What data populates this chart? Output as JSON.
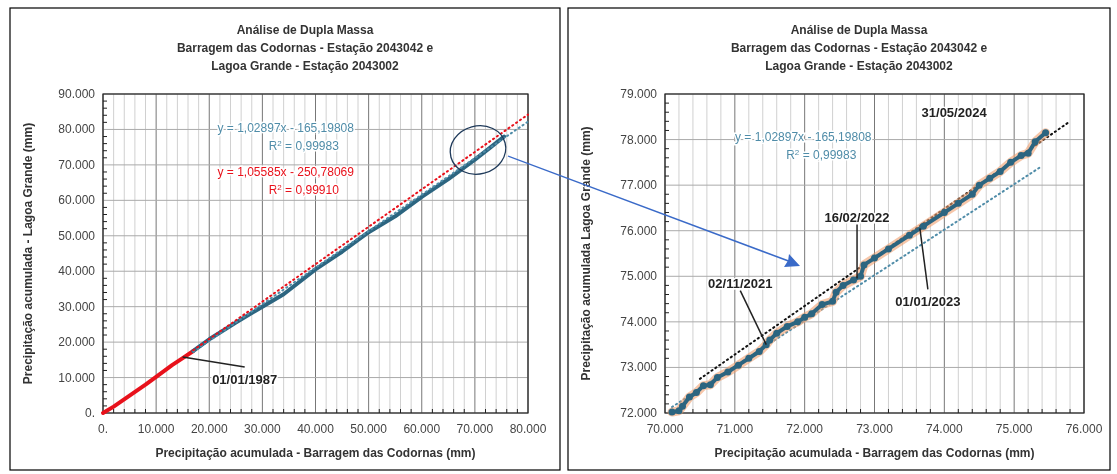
{
  "chart_data": [
    {
      "type": "line",
      "title": "Análise de Dupla Massa\nBarragem das Codornas -  Estação 2043042  e\nLagoa Grande - Estação 2043002",
      "xlabel": "Precipitação acumulada - Barragem das Codornas (mm)",
      "ylabel": "Precipitação acumulada - Lagoa Grande (mm)",
      "xlim": [
        0,
        80000
      ],
      "ylim": [
        0,
        90000
      ],
      "xticks": [
        {
          "value": 0,
          "label": "0."
        },
        {
          "value": 10000,
          "label": "10.000"
        },
        {
          "value": 20000,
          "label": "20.000"
        },
        {
          "value": 30000,
          "label": "30.000"
        },
        {
          "value": 40000,
          "label": "40.000"
        },
        {
          "value": 50000,
          "label": "50.000"
        },
        {
          "value": 60000,
          "label": "60.000"
        },
        {
          "value": 70000,
          "label": "70.000"
        },
        {
          "value": 80000,
          "label": "80.000"
        }
      ],
      "yticks": [
        {
          "value": 0,
          "label": "0."
        },
        {
          "value": 10000,
          "label": "10.000"
        },
        {
          "value": 20000,
          "label": "20.000"
        },
        {
          "value": 30000,
          "label": "30.000"
        },
        {
          "value": 40000,
          "label": "40.000"
        },
        {
          "value": 50000,
          "label": "50.000"
        },
        {
          "value": 60000,
          "label": "60.000"
        },
        {
          "value": 70000,
          "label": "70.000"
        },
        {
          "value": 80000,
          "label": "80.000"
        },
        {
          "value": 90000,
          "label": "90.000"
        }
      ],
      "grid": true,
      "marker": "none",
      "line_style": "solid",
      "series": [
        {
          "color": "#e8111b",
          "x": [
            0,
            2000,
            5000,
            8000,
            10000,
            13000,
            15000,
            17000
          ],
          "values": [
            0,
            1800,
            4900,
            8000,
            10200,
            13500,
            15500,
            17500
          ]
        },
        {
          "color": "#2c6580",
          "x": [
            17000,
            20000,
            25000,
            30000,
            34000,
            40000,
            45000,
            50000,
            55000,
            60000,
            65000,
            70000,
            73000,
            75500
          ],
          "values": [
            17500,
            20800,
            25500,
            30000,
            33500,
            40500,
            45500,
            51000,
            55500,
            61000,
            66000,
            71500,
            75000,
            78000
          ]
        },
        {
          "color": "#4f8ca8",
          "line_style": "dotted",
          "x": [
            17000,
            80000
          ],
          "values": [
            17300,
            82200
          ]
        },
        {
          "color": "#e8111b",
          "line_style": "dotted",
          "x": [
            17000,
            80000
          ],
          "values": [
            17700,
            84200
          ]
        }
      ],
      "annotations": [
        "y = 1,02897x - 165,19808\nR$^{2}$ = 0,99983",
        "y = 1,05585x - 250,78069\nR$^{2}$ = 0,99910",
        {
          "text": "01/01/1987",
          "x": 15000,
          "y": 15800
        }
      ]
    },
    {
      "type": "line",
      "title": "Análise de Dupla Massa\nBarragem das Codornas -  Estação 2043042  e\nLagoa Grande - Estação 2043002",
      "xlabel": "Precipitação acumulada - Barragem das Codornas (mm)",
      "ylabel": "Precipitação acumulada Lagoa Grande (mm)",
      "xlim": [
        70000,
        76000
      ],
      "ylim": [
        72000,
        79000
      ],
      "xticks": [
        {
          "value": 70000,
          "label": "70.000"
        },
        {
          "value": 71000,
          "label": "71.000"
        },
        {
          "value": 72000,
          "label": "72.000"
        },
        {
          "value": 73000,
          "label": "73.000"
        },
        {
          "value": 74000,
          "label": "74.000"
        },
        {
          "value": 75000,
          "label": "75.000"
        },
        {
          "value": 76000,
          "label": "76.000"
        }
      ],
      "yticks": [
        {
          "value": 72000,
          "label": "72.000"
        },
        {
          "value": 73000,
          "label": "73.000"
        },
        {
          "value": 74000,
          "label": "74.000"
        },
        {
          "value": 75000,
          "label": "75.000"
        },
        {
          "value": 76000,
          "label": "76.000"
        },
        {
          "value": 77000,
          "label": "77.000"
        },
        {
          "value": 78000,
          "label": "78.000"
        },
        {
          "value": 79000,
          "label": "79.000"
        }
      ],
      "grid": true,
      "marker": "none",
      "line_style": "solid",
      "series": [
        {
          "color": "#4f8ca8",
          "line_style": "dotted",
          "x": [
            70100,
            75400
          ],
          "values": [
            72130,
            77420
          ]
        },
        {
          "color": "#111111",
          "line_style": "dotted",
          "x": [
            70500,
            75800
          ],
          "values": [
            72750,
            78400
          ]
        },
        {
          "color": "#2c6580",
          "marker": "circle",
          "x": [
            70100,
            70200,
            70250,
            70350,
            70450,
            70550,
            70650,
            70750,
            70900,
            71050,
            71200,
            71350,
            71450,
            71500,
            71600,
            71750,
            71900,
            72000,
            72100,
            72250,
            72400,
            72450,
            72550,
            72700,
            72800,
            72850,
            73000,
            73200,
            73500,
            73700,
            74000,
            74200,
            74400,
            74500,
            74650,
            74800,
            74950,
            75100,
            75200,
            75300,
            75450
          ],
          "values": [
            72020,
            72050,
            72150,
            72350,
            72450,
            72600,
            72620,
            72780,
            72900,
            73050,
            73200,
            73350,
            73500,
            73600,
            73750,
            73900,
            74000,
            74100,
            74180,
            74380,
            74450,
            74650,
            74800,
            74920,
            75000,
            75250,
            75400,
            75600,
            75900,
            76100,
            76400,
            76600,
            76800,
            77000,
            77150,
            77300,
            77500,
            77650,
            77700,
            77950,
            78150
          ]
        }
      ],
      "annotations": [
        "y = 1,02897x - 165,19808\nR$^{2}$ = 0,99983",
        "31/05/2024",
        {
          "text": "02/11/2021",
          "x": 71450,
          "y": 73500
        },
        {
          "text": "16/02/2022",
          "x": 72750,
          "y": 74950
        },
        {
          "text": "01/01/2023",
          "x": 73650,
          "y": 76050
        }
      ]
    }
  ]
}
